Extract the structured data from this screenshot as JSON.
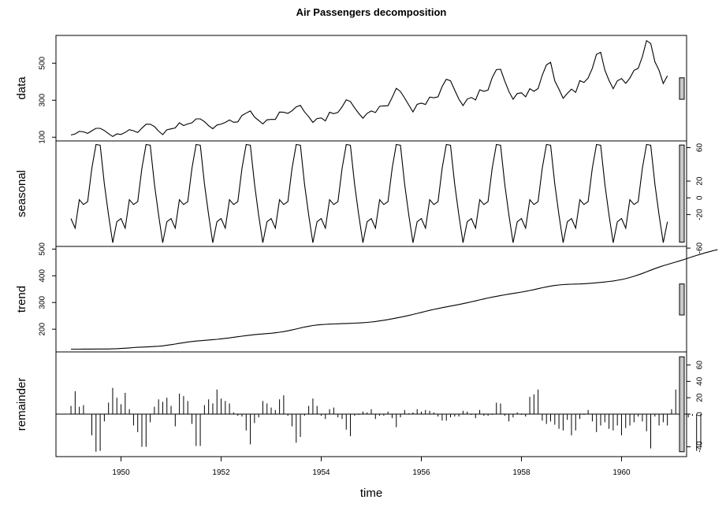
{
  "chart_data": {
    "type": "line",
    "title": "Air Passengers decomposition",
    "xlabel": "time",
    "xlim": [
      1948.7,
      1961.3
    ],
    "x_ticks": [
      1950,
      1952,
      1954,
      1956,
      1958,
      1960
    ],
    "x_tick_labels": [
      "1950",
      "1952",
      "1954",
      "1956",
      "1958",
      "1960"
    ],
    "start": 1949,
    "frequency": 12,
    "panels": [
      {
        "name": "data",
        "ylabel": "data",
        "ylim": [
          80,
          650
        ],
        "y_ticks": [
          100,
          300,
          500
        ],
        "y_tick_labels": [
          "100",
          "300",
          "500"
        ],
        "axis_side": "left",
        "style": "line",
        "values": [
          112,
          118,
          132,
          129,
          121,
          135,
          148,
          148,
          136,
          119,
          104,
          118,
          115,
          126,
          141,
          135,
          125,
          149,
          170,
          170,
          158,
          133,
          114,
          140,
          145,
          150,
          178,
          163,
          172,
          178,
          199,
          199,
          184,
          162,
          146,
          166,
          171,
          180,
          193,
          181,
          183,
          218,
          230,
          242,
          209,
          191,
          172,
          194,
          196,
          196,
          236,
          235,
          229,
          243,
          264,
          272,
          237,
          211,
          180,
          201,
          204,
          188,
          235,
          227,
          234,
          264,
          302,
          293,
          259,
          229,
          203,
          229,
          242,
          233,
          267,
          269,
          270,
          315,
          364,
          347,
          312,
          274,
          237,
          278,
          284,
          277,
          317,
          313,
          318,
          374,
          413,
          405,
          355,
          306,
          271,
          306,
          315,
          301,
          356,
          348,
          355,
          422,
          465,
          467,
          404,
          347,
          305,
          336,
          340,
          318,
          362,
          348,
          363,
          435,
          491,
          505,
          404,
          359,
          310,
          337,
          360,
          342,
          406,
          396,
          420,
          472,
          548,
          559,
          463,
          407,
          362,
          405,
          417,
          391,
          419,
          461,
          472,
          535,
          622,
          606,
          508,
          461,
          390,
          432
        ]
      },
      {
        "name": "seasonal",
        "ylabel": "seasonal",
        "ylim": [
          -58,
          68
        ],
        "y_ticks": [
          -60,
          -20,
          0,
          20,
          60
        ],
        "y_tick_labels": [
          "-60",
          "-20",
          "0",
          "20",
          "60"
        ],
        "axis_side": "right",
        "style": "line",
        "values": [
          -24.7,
          -36.2,
          -2.2,
          -8.0,
          -4.5,
          35.4,
          63.8,
          62.8,
          16.5,
          -20.6,
          -53.6,
          -28.6,
          -24.7,
          -36.2,
          -2.2,
          -8.0,
          -4.5,
          35.4,
          63.8,
          62.8,
          16.5,
          -20.6,
          -53.6,
          -28.6,
          -24.7,
          -36.2,
          -2.2,
          -8.0,
          -4.5,
          35.4,
          63.8,
          62.8,
          16.5,
          -20.6,
          -53.6,
          -28.6,
          -24.7,
          -36.2,
          -2.2,
          -8.0,
          -4.5,
          35.4,
          63.8,
          62.8,
          16.5,
          -20.6,
          -53.6,
          -28.6,
          -24.7,
          -36.2,
          -2.2,
          -8.0,
          -4.5,
          35.4,
          63.8,
          62.8,
          16.5,
          -20.6,
          -53.6,
          -28.6,
          -24.7,
          -36.2,
          -2.2,
          -8.0,
          -4.5,
          35.4,
          63.8,
          62.8,
          16.5,
          -20.6,
          -53.6,
          -28.6,
          -24.7,
          -36.2,
          -2.2,
          -8.0,
          -4.5,
          35.4,
          63.8,
          62.8,
          16.5,
          -20.6,
          -53.6,
          -28.6,
          -24.7,
          -36.2,
          -2.2,
          -8.0,
          -4.5,
          35.4,
          63.8,
          62.8,
          16.5,
          -20.6,
          -53.6,
          -28.6,
          -24.7,
          -36.2,
          -2.2,
          -8.0,
          -4.5,
          35.4,
          63.8,
          62.8,
          16.5,
          -20.6,
          -53.6,
          -28.6,
          -24.7,
          -36.2,
          -2.2,
          -8.0,
          -4.5,
          35.4,
          63.8,
          62.8,
          16.5,
          -20.6,
          -53.6,
          -28.6,
          -24.7,
          -36.2,
          -2.2,
          -8.0,
          -4.5,
          35.4,
          63.8,
          62.8,
          16.5,
          -20.6,
          -53.6,
          -28.6,
          -24.7,
          -36.2,
          -2.2,
          -8.0,
          -4.5,
          35.4,
          63.8,
          62.8,
          16.5,
          -20.6,
          -53.6,
          -28.6
        ]
      },
      {
        "name": "trend",
        "ylabel": "trend",
        "ylim": [
          115,
          510
        ],
        "y_ticks": [
          200,
          300,
          400,
          500
        ],
        "y_tick_labels": [
          "200",
          "300",
          "400",
          "500"
        ],
        "axis_side": "left",
        "style": "line",
        "values": [
          125.2,
          125.3,
          125.4,
          125.5,
          125.6,
          125.7,
          125.8,
          125.9,
          126.0,
          126.0,
          126.5,
          127.0,
          127.9,
          129.0,
          130.1,
          131.3,
          132.4,
          133.1,
          133.7,
          134.4,
          135.2,
          136.3,
          137.8,
          139.8,
          142.0,
          144.4,
          147.0,
          149.5,
          152.0,
          154.0,
          155.7,
          157.0,
          158.3,
          159.6,
          160.9,
          162.3,
          163.9,
          165.7,
          167.6,
          169.7,
          171.9,
          174.1,
          176.1,
          177.9,
          179.5,
          180.9,
          182.3,
          183.6,
          185.0,
          186.7,
          188.7,
          191.1,
          194.0,
          197.3,
          200.9,
          204.6,
          208.1,
          211.2,
          213.7,
          215.8,
          217.3,
          218.3,
          219.0,
          219.6,
          220.2,
          220.8,
          221.4,
          222.0,
          222.7,
          223.4,
          224.3,
          225.5,
          227.0,
          228.9,
          231.1,
          233.6,
          236.3,
          239.1,
          242.0,
          245.0,
          248.2,
          251.6,
          255.2,
          259.0,
          262.9,
          266.8,
          270.6,
          274.2,
          277.5,
          280.6,
          283.6,
          286.6,
          289.6,
          292.6,
          295.7,
          299.0,
          302.5,
          306.1,
          309.8,
          313.4,
          316.9,
          320.1,
          323.1,
          326.0,
          328.7,
          331.3,
          333.9,
          336.4,
          339.0,
          341.8,
          344.9,
          348.2,
          351.7,
          355.2,
          358.5,
          361.4,
          363.8,
          365.6,
          366.9,
          367.8,
          368.5,
          369.0,
          369.5,
          370.2,
          371.2,
          372.4,
          373.8,
          375.3,
          376.9,
          378.7,
          380.7,
          383.1,
          386.0,
          389.4,
          393.5,
          398.2,
          403.4,
          409.0,
          415.0,
          421.1,
          427.0,
          432.6,
          437.7,
          442.3,
          446.8,
          451.3,
          456.1,
          461.1,
          466.2,
          471.3,
          476.3,
          481.1,
          485.7,
          490.0,
          494.0,
          497.6
        ]
      },
      {
        "name": "remainder",
        "ylabel": "remainder",
        "ylim": [
          -52,
          76
        ],
        "y_ticks": [
          -40,
          0,
          20,
          40,
          60
        ],
        "y_tick_labels": [
          "-40",
          "0",
          "20",
          "40",
          "60"
        ],
        "axis_side": "right",
        "style": "bars",
        "values": [
          10,
          28,
          9,
          11,
          0,
          -26,
          -46,
          -45,
          -9,
          14,
          32,
          20,
          12,
          26,
          6,
          -14,
          -22,
          -40,
          -40,
          -10,
          9,
          18,
          15,
          20,
          10,
          -15,
          25,
          22,
          16,
          -12,
          -39,
          -39,
          11,
          18,
          13,
          30,
          19,
          16,
          13,
          2,
          -2,
          -3,
          -20,
          -37,
          -11,
          -4,
          16,
          13,
          8,
          5,
          18,
          23,
          -2,
          -15,
          -35,
          -28,
          -2,
          10,
          19,
          10,
          -2,
          -6,
          6,
          8,
          -4,
          -6,
          -19,
          -27,
          -2,
          -1,
          3,
          2,
          6,
          -6,
          -2,
          -2,
          3,
          -5,
          -16,
          -4,
          5,
          1,
          2,
          6,
          3,
          5,
          4,
          2,
          -3,
          -8,
          -8,
          -4,
          -3,
          -3,
          4,
          3,
          -1,
          -5,
          5,
          -2,
          -2,
          -1,
          14,
          13,
          -2,
          -9,
          -4,
          2,
          -1,
          -3,
          21,
          24,
          30,
          -8,
          -12,
          -9,
          -13,
          -18,
          -20,
          -7,
          -26,
          -20,
          -6,
          -1,
          5,
          -9,
          -22,
          -14,
          -10,
          -18,
          -20,
          -14,
          -26,
          -17,
          -14,
          -10,
          -3,
          -9,
          -21,
          -42,
          -3,
          -14,
          -10,
          -14,
          6,
          30,
          70,
          57,
          -4,
          -2,
          -45,
          -40
        ]
      }
    ]
  }
}
